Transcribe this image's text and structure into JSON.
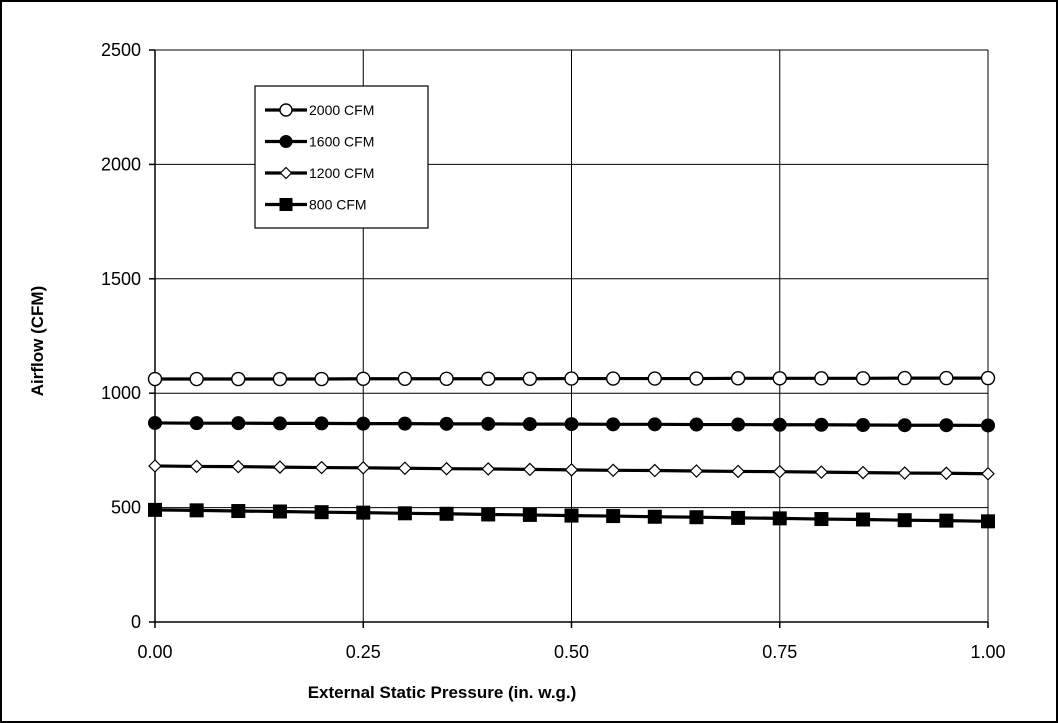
{
  "chart_data": {
    "type": "line",
    "title": "",
    "xlabel": "External Static Pressure (in. w.g.)",
    "ylabel": "Airflow (CFM)",
    "xlim": [
      0,
      1
    ],
    "ylim": [
      0,
      2500
    ],
    "x_ticks": [
      "0.00",
      "0.25",
      "0.50",
      "0.75",
      "1.00"
    ],
    "y_ticks": [
      "0",
      "500",
      "1000",
      "1500",
      "2000",
      "2500"
    ],
    "grid": true,
    "legend_position": "top-left",
    "x": [
      0.0,
      0.05,
      0.1,
      0.15,
      0.2,
      0.25,
      0.3,
      0.35,
      0.4,
      0.45,
      0.5,
      0.55,
      0.6,
      0.65,
      0.7,
      0.75,
      0.8,
      0.85,
      0.9,
      0.95,
      1.0
    ],
    "series": [
      {
        "name": "2000 CFM",
        "marker": "circle-open",
        "color": "#000000",
        "values": [
          1062,
          1062,
          1062,
          1062,
          1062,
          1063,
          1063,
          1063,
          1063,
          1063,
          1064,
          1064,
          1064,
          1064,
          1065,
          1065,
          1065,
          1065,
          1066,
          1066,
          1066
        ]
      },
      {
        "name": "1600 CFM",
        "marker": "circle-filled",
        "color": "#000000",
        "values": [
          870,
          869,
          869,
          868,
          868,
          867,
          867,
          866,
          866,
          865,
          865,
          864,
          864,
          863,
          863,
          862,
          862,
          861,
          860,
          860,
          859
        ]
      },
      {
        "name": "1200 CFM",
        "marker": "diamond-open",
        "color": "#000000",
        "values": [
          682,
          680,
          679,
          677,
          675,
          674,
          672,
          670,
          669,
          667,
          665,
          663,
          662,
          660,
          658,
          657,
          655,
          653,
          651,
          650,
          648
        ]
      },
      {
        "name": "800 CFM",
        "marker": "square-filled",
        "color": "#000000",
        "values": [
          490,
          488,
          485,
          483,
          480,
          478,
          475,
          473,
          470,
          468,
          465,
          463,
          460,
          458,
          455,
          453,
          450,
          448,
          445,
          443,
          440
        ]
      }
    ]
  }
}
